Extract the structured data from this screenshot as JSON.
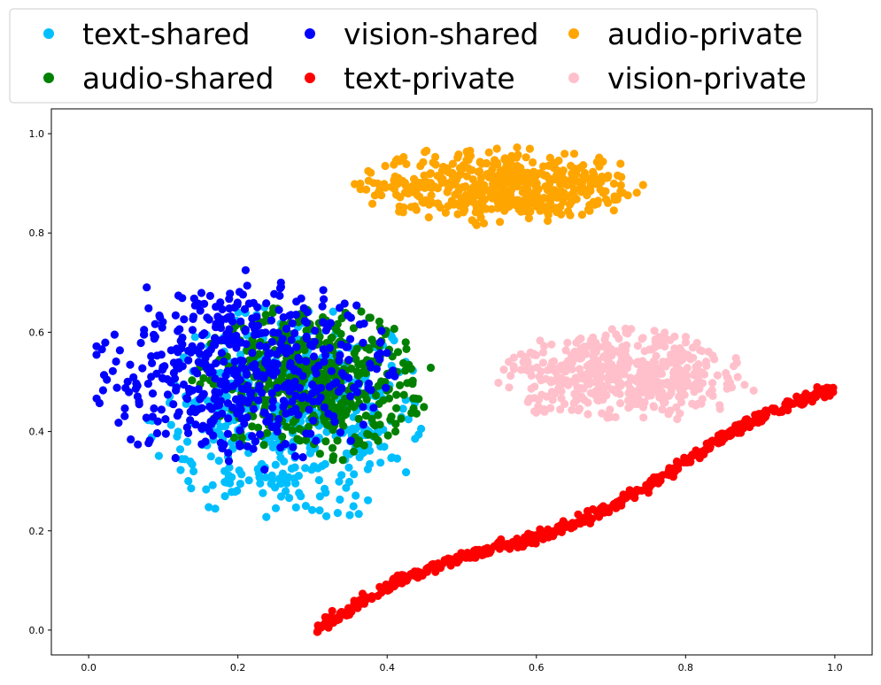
{
  "chart_data": {
    "type": "scatter",
    "title": "",
    "xlabel": "",
    "ylabel": "",
    "xlim": [
      -0.05,
      1.05
    ],
    "ylim": [
      -0.05,
      1.05
    ],
    "x_ticks": [
      "0.0",
      "0.2",
      "0.4",
      "0.6",
      "0.8",
      "1.0"
    ],
    "y_ticks": [
      "0.0",
      "0.2",
      "0.4",
      "0.6",
      "0.8",
      "1.0"
    ],
    "grid": false,
    "legend": {
      "placement": "top-center",
      "columns": 3
    },
    "series": [
      {
        "name": "text-shared",
        "color": "#00bfff",
        "shape": "cluster",
        "center": [
          0.27,
          0.43
        ],
        "spread": [
          0.12,
          0.14
        ],
        "points": 500
      },
      {
        "name": "audio-shared",
        "color": "#008000",
        "shape": "cluster",
        "center": [
          0.3,
          0.5
        ],
        "spread": [
          0.1,
          0.1
        ],
        "points": 500
      },
      {
        "name": "vision-shared",
        "color": "#0000ff",
        "shape": "cluster",
        "center": [
          0.2,
          0.52
        ],
        "spread": [
          0.13,
          0.13
        ],
        "points": 500
      },
      {
        "name": "text-private",
        "color": "#ff0000",
        "shape": "line",
        "from": [
          0.305,
          0.0
        ],
        "to": [
          1.0,
          0.475
        ],
        "points": 500
      },
      {
        "name": "audio-private",
        "color": "#ffa500",
        "shape": "cluster",
        "center": [
          0.55,
          0.895
        ],
        "spread": [
          0.12,
          0.05
        ],
        "points": 500
      },
      {
        "name": "vision-private",
        "color": "#ffc0cb",
        "shape": "cluster",
        "center": [
          0.72,
          0.51
        ],
        "spread": [
          0.11,
          0.06
        ],
        "points": 500
      }
    ]
  }
}
